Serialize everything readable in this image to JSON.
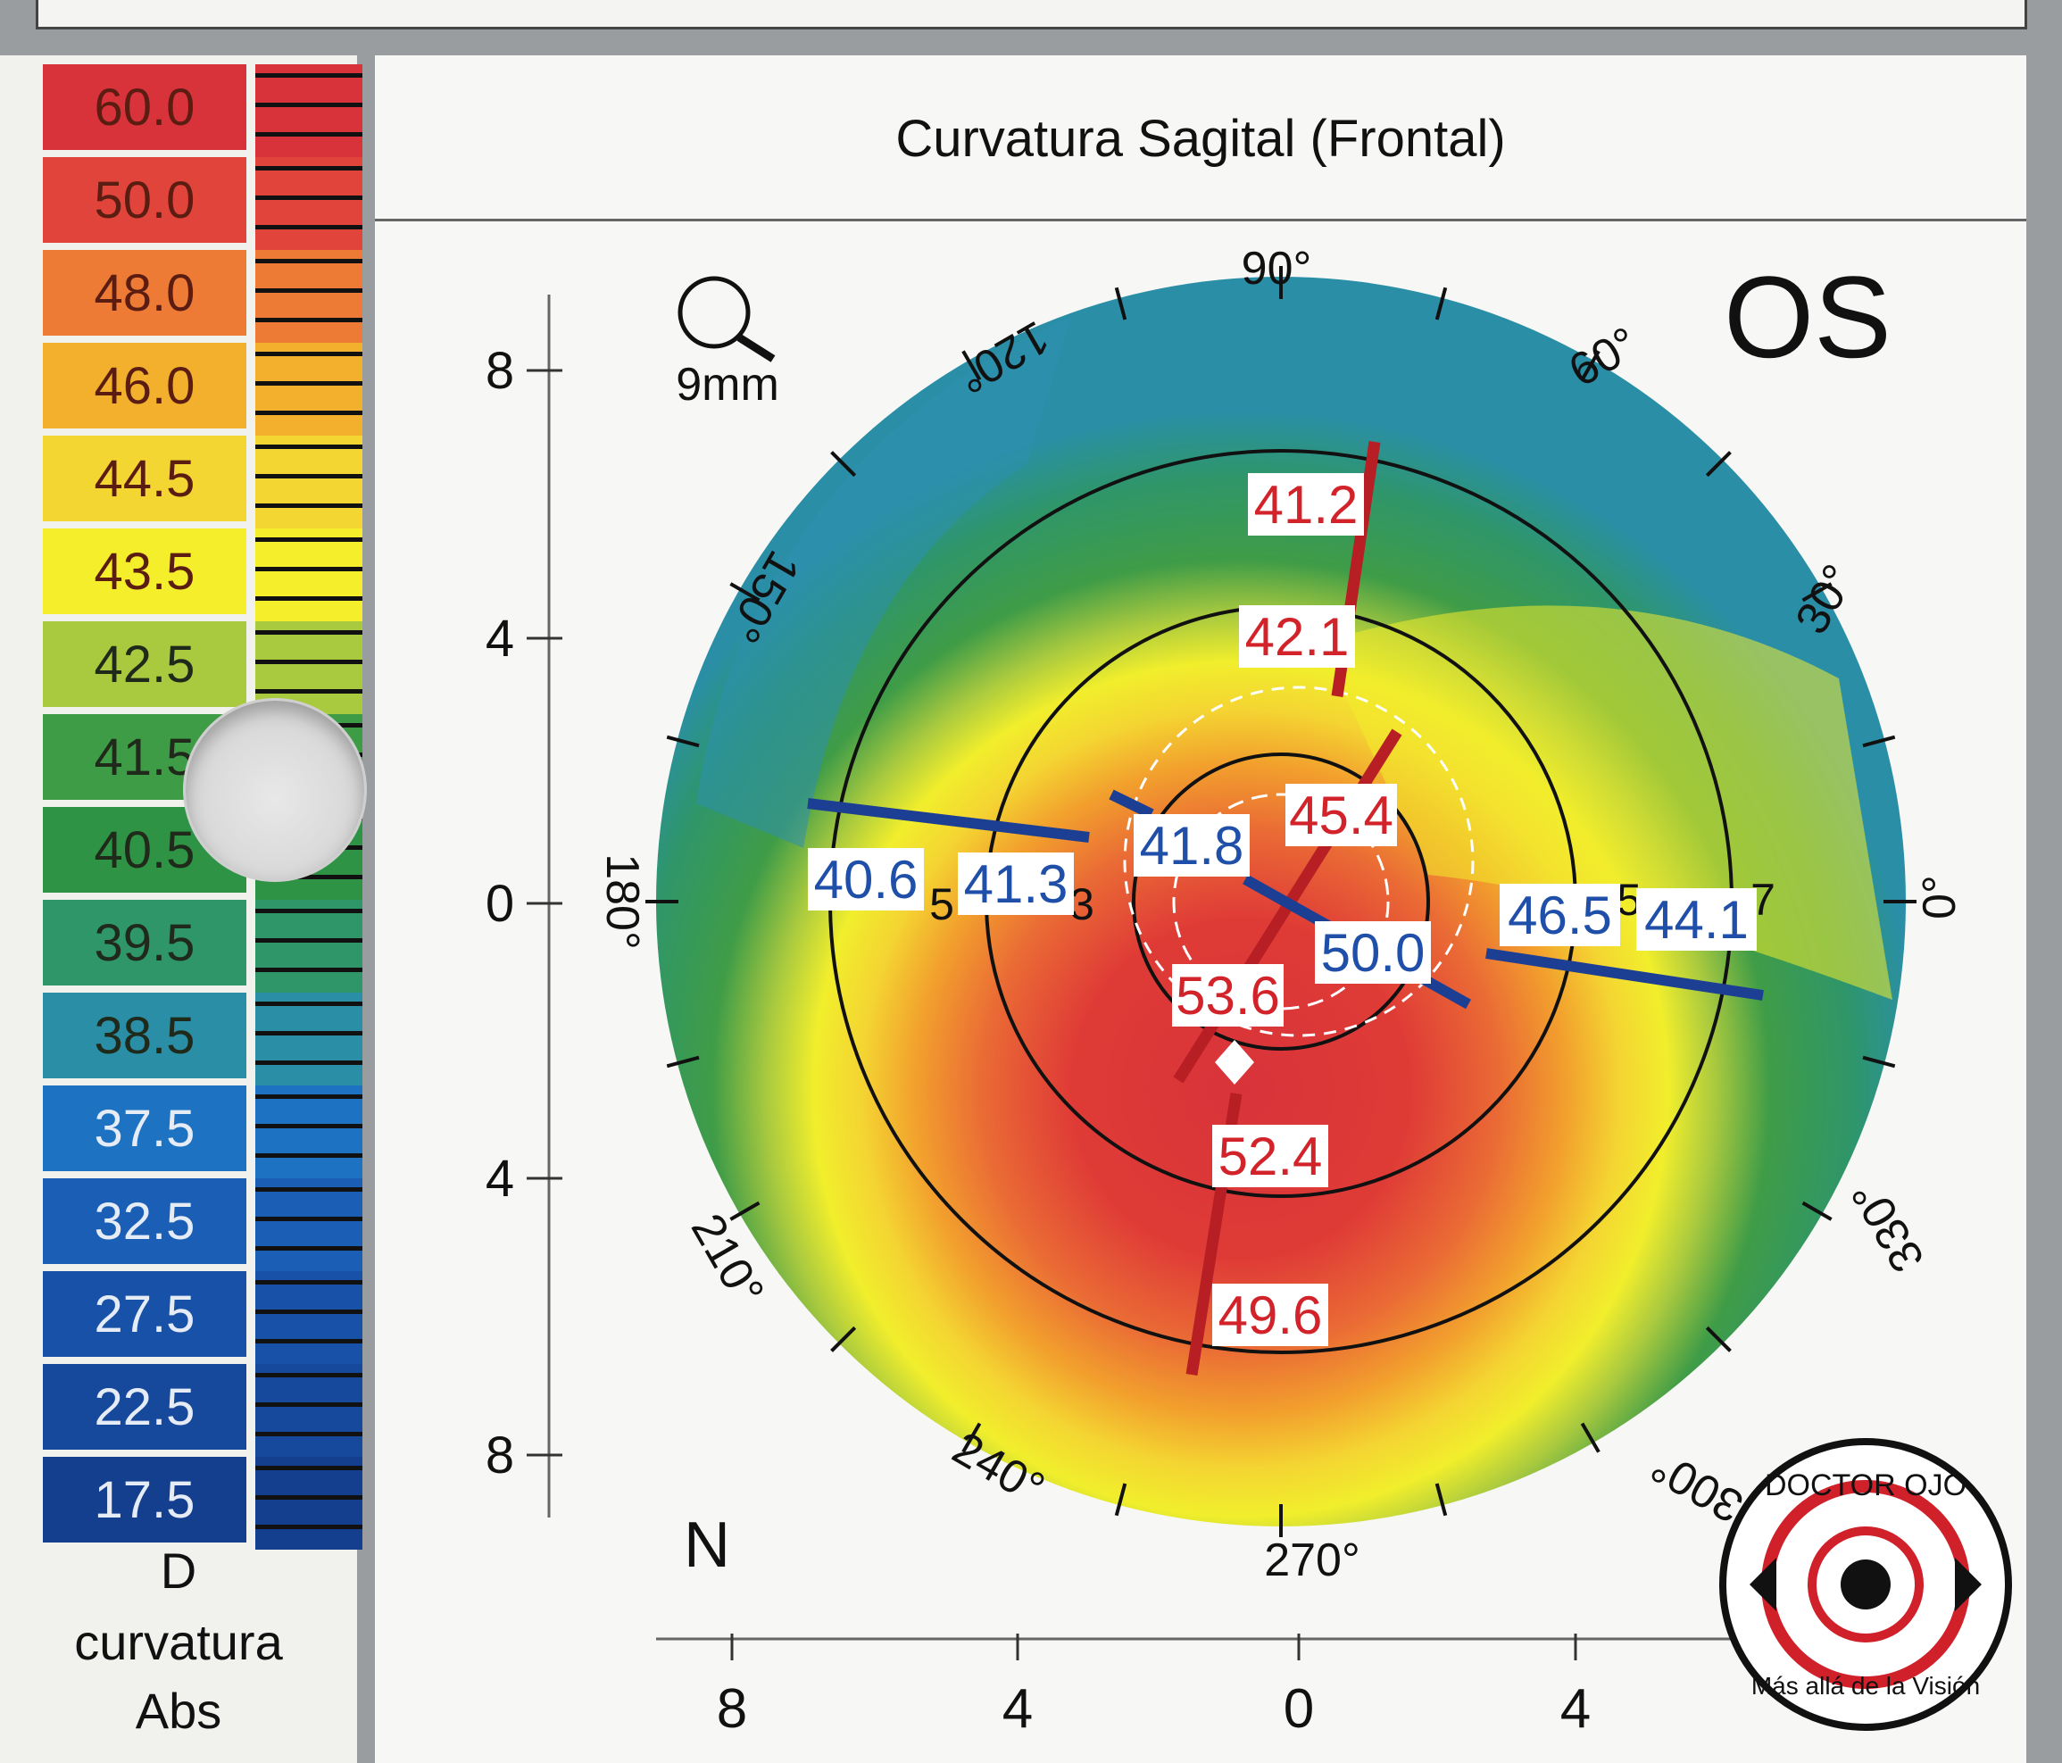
{
  "chart_data": {
    "type": "heatmap",
    "title": "Curvatura Sagital (Frontal)",
    "eye": "OS",
    "zoom_label": "9mm",
    "nasal_label": "N",
    "legend": {
      "unit_lines": [
        "D",
        "curvatura",
        "Abs"
      ],
      "levels": [
        {
          "value": "60.0",
          "color": "#d8333a"
        },
        {
          "value": "50.0",
          "color": "#e0443a"
        },
        {
          "value": "48.0",
          "color": "#ee7b35"
        },
        {
          "value": "46.0",
          "color": "#f2b02c"
        },
        {
          "value": "44.5",
          "color": "#f3d632"
        },
        {
          "value": "43.5",
          "color": "#f4ef2a"
        },
        {
          "value": "42.5",
          "color": "#a9ca3f"
        },
        {
          "value": "41.5",
          "color": "#3e9c47"
        },
        {
          "value": "40.5",
          "color": "#2e9345"
        },
        {
          "value": "39.5",
          "color": "#2f9669"
        },
        {
          "value": "38.5",
          "color": "#2a8fa6"
        },
        {
          "value": "37.5",
          "color": "#1d72c2"
        },
        {
          "value": "32.5",
          "color": "#1a5fb5"
        },
        {
          "value": "27.5",
          "color": "#1852a8"
        },
        {
          "value": "22.5",
          "color": "#16489c"
        },
        {
          "value": "17.5",
          "color": "#143f8f"
        }
      ]
    },
    "angle_labels": [
      "90°",
      "60°",
      "30°",
      "0°",
      "330°",
      "300°",
      "270°",
      "240°",
      "210°",
      "180°",
      "150°",
      "120°"
    ],
    "y_ticks": [
      "8",
      "4",
      "0",
      "4",
      "8"
    ],
    "x_ticks": [
      "8",
      "4",
      "0",
      "4"
    ],
    "ring_labels": [
      "3",
      "5",
      "7"
    ],
    "steep_meridian": {
      "color": "#d2232a",
      "values": [
        "41.2",
        "42.1",
        "45.4",
        "53.6",
        "52.4",
        "49.6"
      ]
    },
    "flat_meridian": {
      "color": "#1f4fa8",
      "values": [
        "40.6",
        "41.3",
        "41.8",
        "50.0",
        "46.5",
        "44.1"
      ]
    }
  },
  "watermark": {
    "top_text": "DOCTOR OJO",
    "bottom_text": "Más allá de la Visión"
  }
}
